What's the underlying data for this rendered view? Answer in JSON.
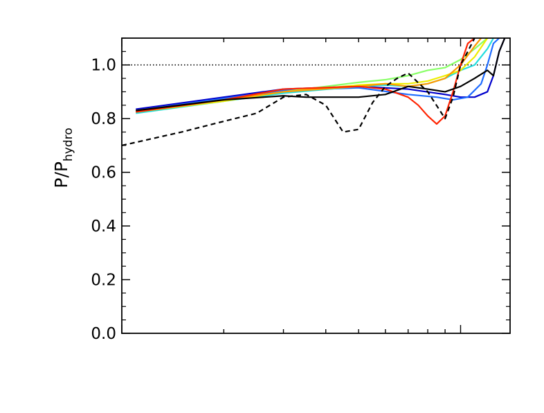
{
  "chart_data": {
    "type": "line",
    "title": "",
    "xlabel": "",
    "ylabel_main": "P/P",
    "ylabel_sub": "hydro",
    "xscale": "log",
    "x_tick_labels_shown": false,
    "xlim": [
      0.1,
      1.4
    ],
    "ylim": [
      0.0,
      1.1
    ],
    "y_ticks": [
      0.0,
      0.2,
      0.4,
      0.6,
      0.8,
      1.0
    ],
    "y_tick_labels": [
      "0.0",
      "0.2",
      "0.4",
      "0.6",
      "0.8",
      "1.0"
    ],
    "reference_line": {
      "y": 1.0,
      "style": "dotted",
      "color": "#000000"
    },
    "series": [
      {
        "color": "#0000cc",
        "dash": "solid",
        "x": [
          0.11,
          0.2,
          0.3,
          0.5,
          0.7,
          0.9,
          1.0,
          1.1,
          1.2,
          1.25,
          1.3,
          1.35
        ],
        "y": [
          0.835,
          0.88,
          0.91,
          0.92,
          0.91,
          0.89,
          0.88,
          0.88,
          0.9,
          0.96,
          1.05,
          1.1
        ]
      },
      {
        "color": "#1e6bff",
        "dash": "solid",
        "x": [
          0.11,
          0.2,
          0.3,
          0.5,
          0.7,
          0.85,
          0.95,
          1.05,
          1.15,
          1.2,
          1.25,
          1.3
        ],
        "y": [
          0.83,
          0.875,
          0.905,
          0.915,
          0.89,
          0.88,
          0.87,
          0.88,
          0.93,
          1.0,
          1.08,
          1.1
        ]
      },
      {
        "color": "#22dddd",
        "dash": "solid",
        "x": [
          0.11,
          0.2,
          0.3,
          0.5,
          0.6,
          0.7,
          0.8,
          0.9,
          1.0,
          1.1,
          1.2,
          1.25
        ],
        "y": [
          0.82,
          0.865,
          0.895,
          0.92,
          0.925,
          0.92,
          0.93,
          0.95,
          0.98,
          1.0,
          1.06,
          1.1
        ]
      },
      {
        "color": "#88ff66",
        "dash": "solid",
        "x": [
          0.11,
          0.2,
          0.3,
          0.5,
          0.6,
          0.7,
          0.8,
          0.9,
          1.0,
          1.1,
          1.2
        ],
        "y": [
          0.825,
          0.87,
          0.9,
          0.935,
          0.945,
          0.96,
          0.98,
          0.99,
          1.02,
          1.06,
          1.1
        ]
      },
      {
        "color": "#eeee00",
        "dash": "solid",
        "x": [
          0.11,
          0.2,
          0.3,
          0.5,
          0.6,
          0.7,
          0.8,
          0.9,
          1.0,
          1.1,
          1.2
        ],
        "y": [
          0.825,
          0.865,
          0.9,
          0.925,
          0.93,
          0.93,
          0.94,
          0.96,
          0.98,
          1.03,
          1.1
        ]
      },
      {
        "color": "#ff9900",
        "dash": "solid",
        "x": [
          0.11,
          0.2,
          0.3,
          0.5,
          0.6,
          0.7,
          0.8,
          0.9,
          1.0,
          1.1,
          1.15
        ],
        "y": [
          0.83,
          0.87,
          0.9,
          0.92,
          0.93,
          0.92,
          0.93,
          0.95,
          1.0,
          1.07,
          1.1
        ]
      },
      {
        "color": "#ff2200",
        "dash": "solid",
        "x": [
          0.11,
          0.2,
          0.3,
          0.5,
          0.6,
          0.7,
          0.75,
          0.8,
          0.85,
          0.9,
          0.95,
          1.0,
          1.05,
          1.1
        ],
        "y": [
          0.825,
          0.87,
          0.91,
          0.92,
          0.91,
          0.88,
          0.85,
          0.81,
          0.78,
          0.81,
          0.9,
          1.0,
          1.08,
          1.1
        ]
      },
      {
        "color": "#000000",
        "dash": "solid",
        "x": [
          0.11,
          0.2,
          0.3,
          0.35,
          0.5,
          0.6,
          0.7,
          0.8,
          0.9,
          1.0,
          1.1,
          1.2,
          1.25,
          1.3,
          1.35
        ],
        "y": [
          0.83,
          0.87,
          0.885,
          0.88,
          0.88,
          0.89,
          0.92,
          0.91,
          0.9,
          0.92,
          0.95,
          0.98,
          0.96,
          1.05,
          1.1
        ]
      },
      {
        "color": "#000000",
        "dash": "dashed",
        "x": [
          0.1,
          0.15,
          0.2,
          0.25,
          0.3,
          0.35,
          0.4,
          0.45,
          0.5,
          0.55,
          0.6,
          0.65,
          0.7,
          0.8,
          0.9,
          0.95,
          1.0,
          1.05,
          1.1
        ],
        "y": [
          0.7,
          0.75,
          0.79,
          0.82,
          0.88,
          0.89,
          0.85,
          0.75,
          0.76,
          0.86,
          0.92,
          0.95,
          0.97,
          0.9,
          0.8,
          0.88,
          1.0,
          1.05,
          1.1
        ]
      }
    ]
  }
}
